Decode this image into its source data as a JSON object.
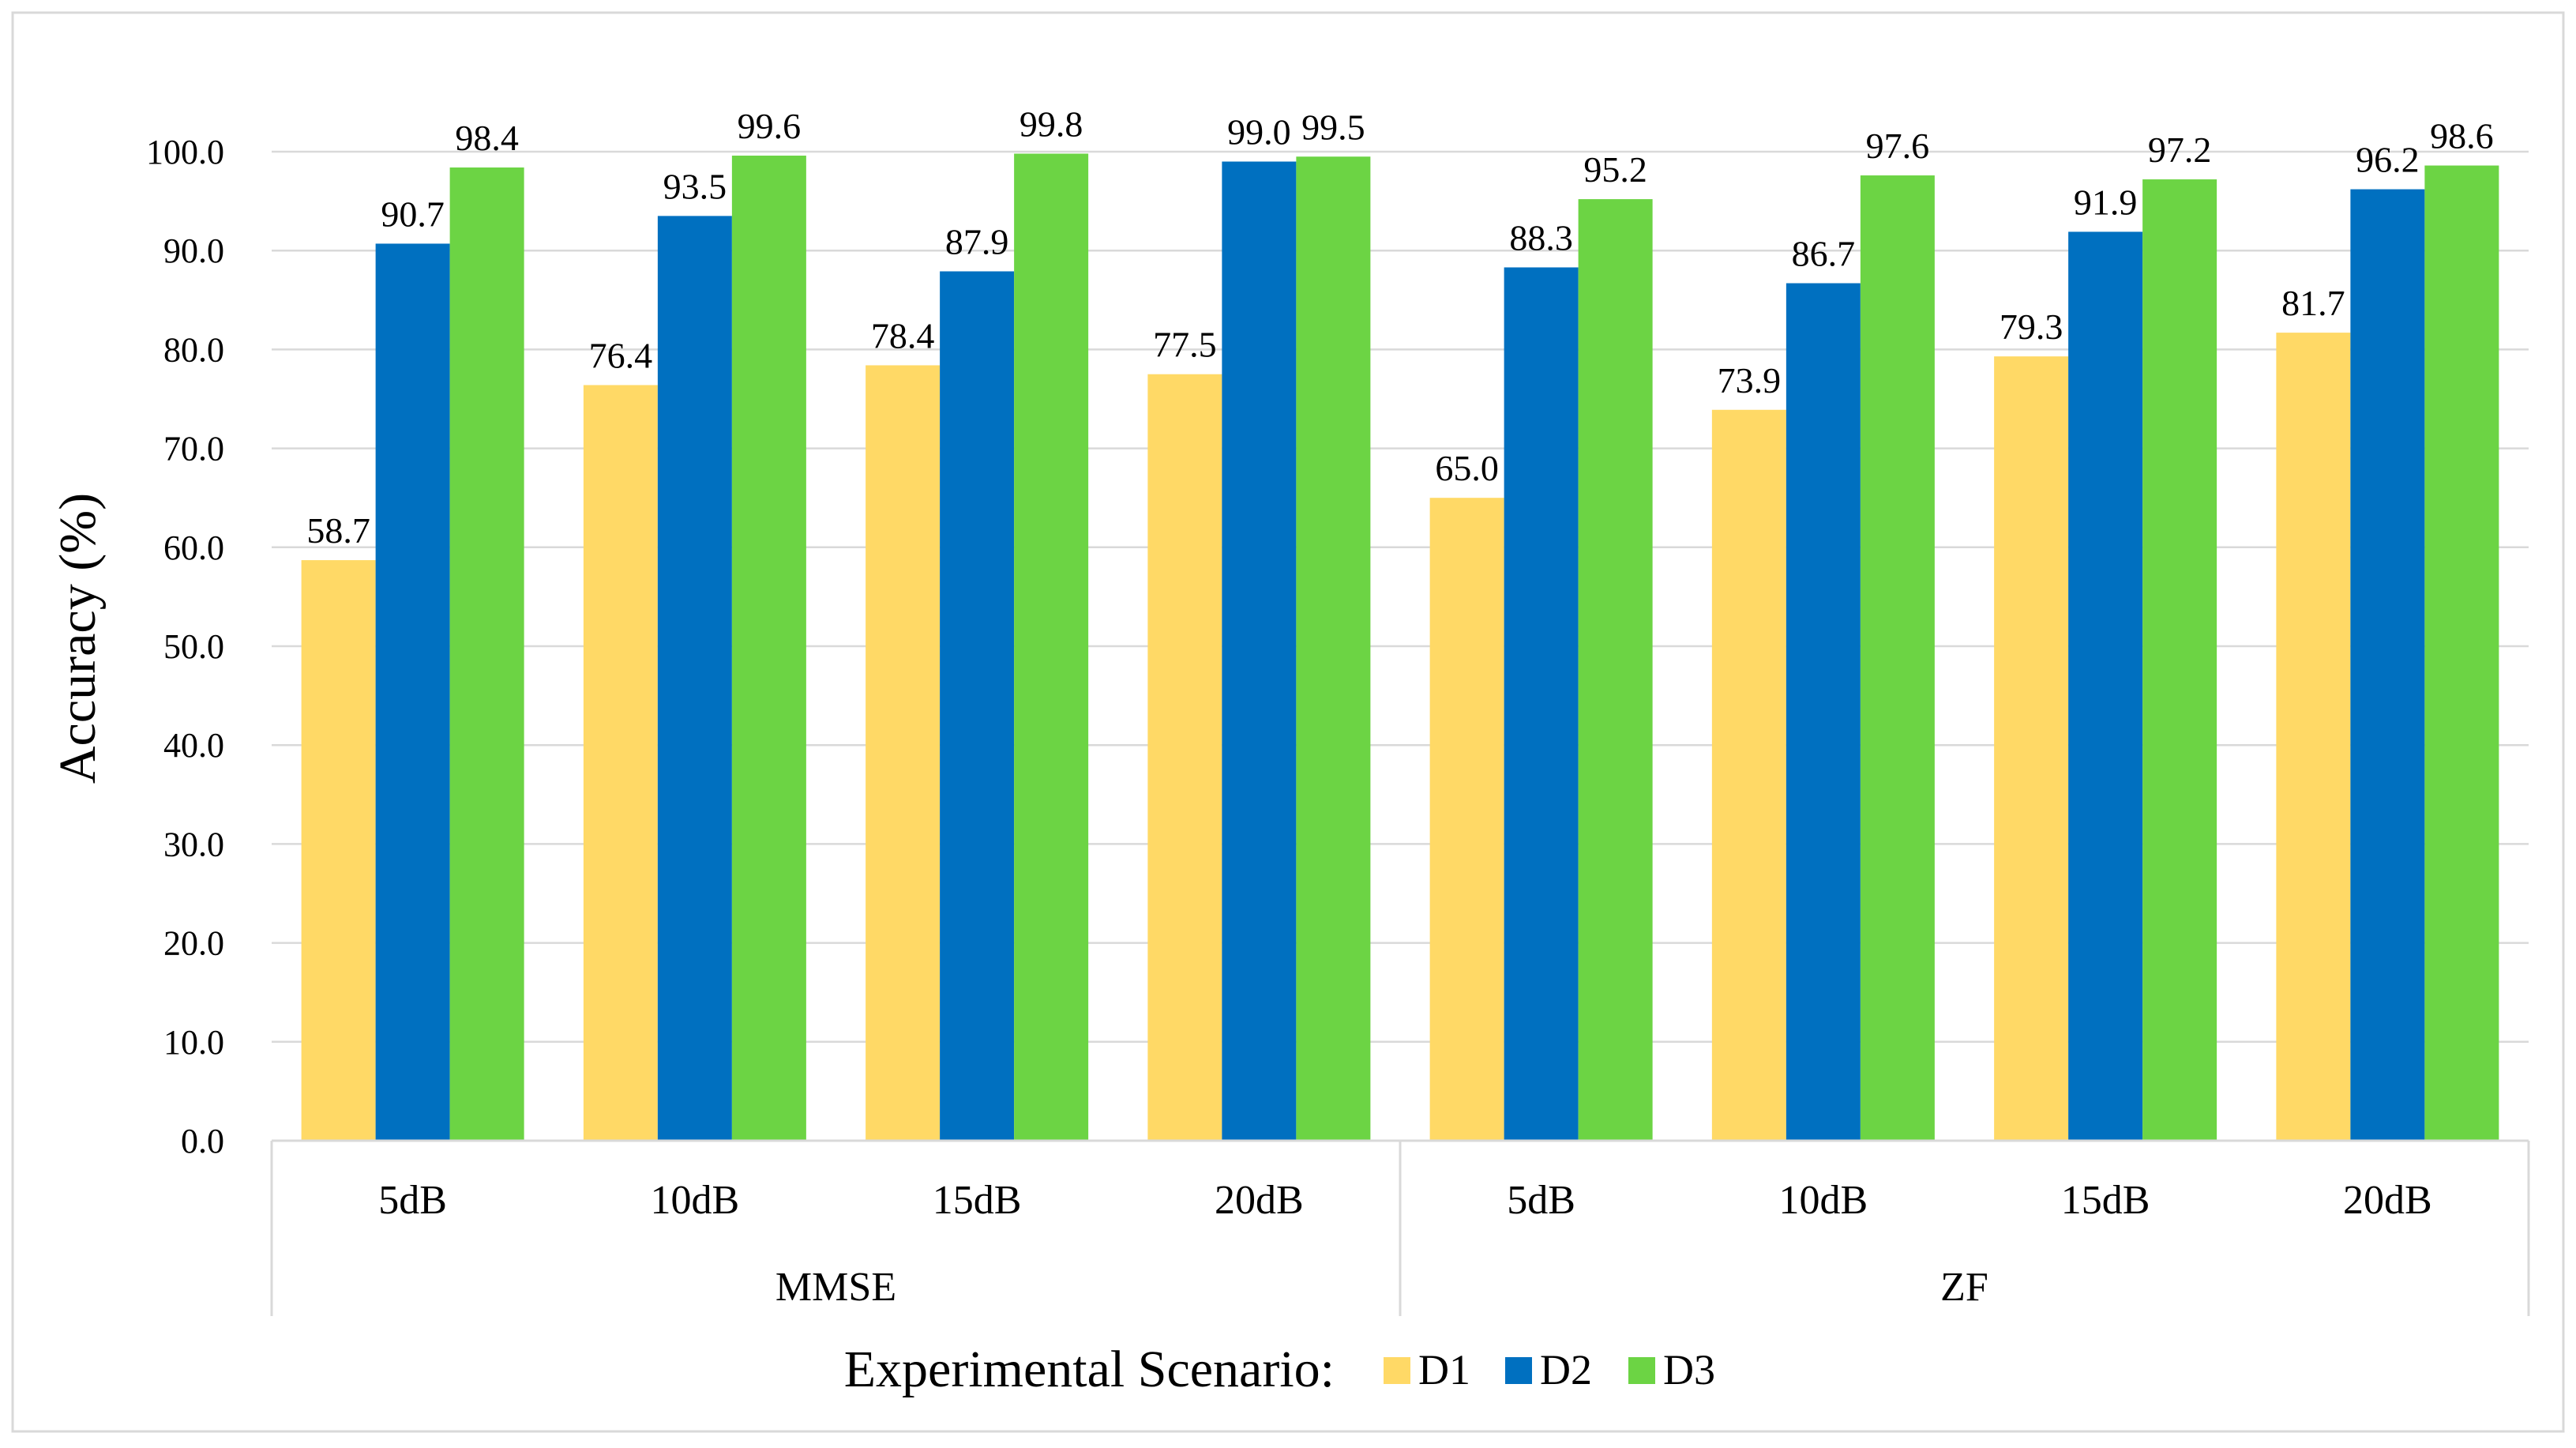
{
  "chart_data": {
    "type": "bar",
    "title": "",
    "ylabel": "Accuracy (%)",
    "xlabel": "",
    "ylim": [
      0,
      100
    ],
    "y_ticks": [
      "0.0",
      "10.0",
      "20.0",
      "30.0",
      "40.0",
      "50.0",
      "60.0",
      "70.0",
      "80.0",
      "90.0",
      "100.0"
    ],
    "grid": true,
    "groups": [
      {
        "name": "MMSE",
        "categories": [
          "5dB",
          "10dB",
          "15dB",
          "20dB"
        ]
      },
      {
        "name": "ZF",
        "categories": [
          "5dB",
          "10dB",
          "15dB",
          "20dB"
        ]
      }
    ],
    "categories": [
      "5dB",
      "10dB",
      "15dB",
      "20dB",
      "5dB",
      "10dB",
      "15dB",
      "20dB"
    ],
    "series": [
      {
        "name": "D1",
        "color": "#FFD966",
        "values": [
          58.7,
          76.4,
          78.4,
          77.5,
          65.0,
          73.9,
          79.3,
          81.7
        ],
        "labels": [
          "58.7",
          "76.4",
          "78.4",
          "77.5",
          "65.0",
          "73.9",
          "79.3",
          "81.7"
        ]
      },
      {
        "name": "D2",
        "color": "#0070C0",
        "values": [
          90.7,
          93.5,
          87.9,
          99.0,
          88.3,
          86.7,
          91.9,
          96.2
        ],
        "labels": [
          "90.7",
          "93.5",
          "87.9",
          "99.0",
          "88.3",
          "86.7",
          "91.9",
          "96.2"
        ]
      },
      {
        "name": "D3",
        "color": "#6CD444",
        "values": [
          98.4,
          99.6,
          99.8,
          99.5,
          95.2,
          97.6,
          97.2,
          98.6
        ],
        "labels": [
          "98.4",
          "99.6",
          "99.8",
          "99.5",
          "95.2",
          "97.6",
          "97.2",
          "98.6"
        ]
      }
    ],
    "legend": {
      "title": "Experimental Scenario:",
      "position": "bottom"
    }
  }
}
